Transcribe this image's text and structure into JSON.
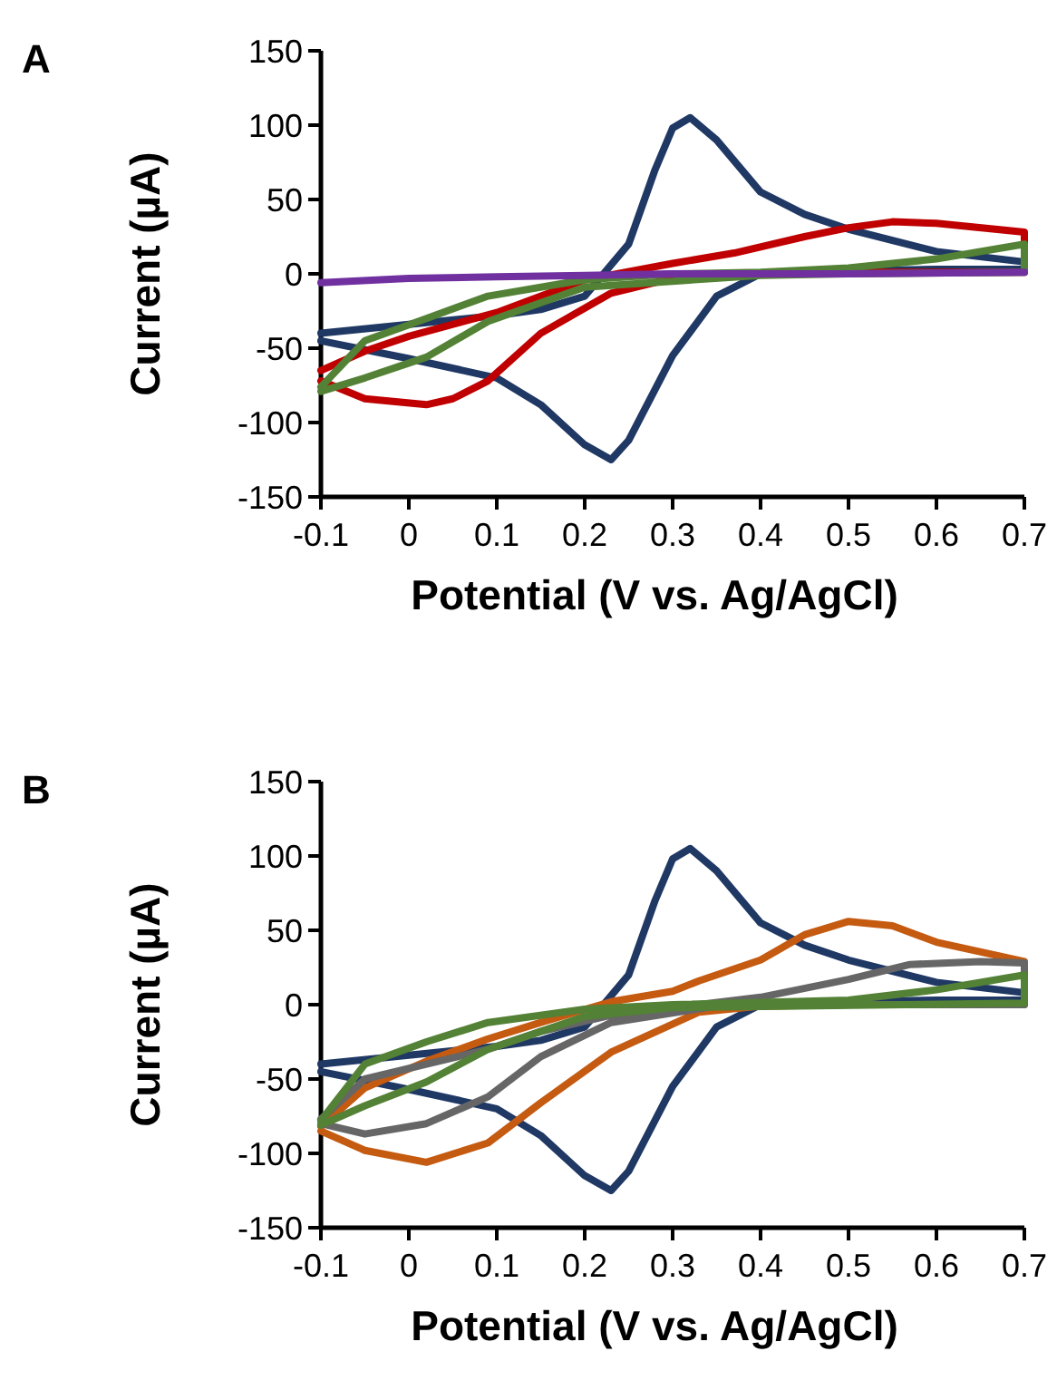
{
  "chart_data": [
    {
      "type": "line",
      "title": "A",
      "xlabel": "Potential (V vs. Ag/AgCl)",
      "ylabel": "Current (µA)",
      "xlim": [
        -0.1,
        0.7
      ],
      "ylim": [
        -150,
        150
      ],
      "xticks": [
        -0.1,
        0,
        0.1,
        0.2,
        0.3,
        0.4,
        0.5,
        0.6,
        0.7
      ],
      "yticks": [
        -150,
        -100,
        -50,
        0,
        50,
        100,
        150
      ],
      "grid": false,
      "marker": "none",
      "line_style": "solid",
      "series": [
        {
          "color": "#1f3864",
          "x": [
            -0.1,
            0,
            0.1,
            0.15,
            0.2,
            0.25,
            0.28,
            0.3,
            0.32,
            0.35,
            0.4,
            0.45,
            0.5,
            0.6,
            0.7,
            0.7,
            0.6,
            0.5,
            0.4,
            0.35,
            0.3,
            0.25,
            0.23,
            0.2,
            0.15,
            0.1,
            0,
            -0.1
          ],
          "values": [
            -40,
            -34,
            -28,
            -24,
            -15,
            20,
            70,
            98,
            105,
            90,
            55,
            40,
            30,
            15,
            8,
            3,
            3,
            2,
            0,
            -15,
            -55,
            -112,
            -125,
            -115,
            -88,
            -70,
            -57,
            -45
          ]
        },
        {
          "color": "#c00000",
          "x": [
            -0.1,
            -0.05,
            0,
            0.1,
            0.2,
            0.3,
            0.37,
            0.45,
            0.5,
            0.55,
            0.6,
            0.7,
            0.7,
            0.5,
            0.4,
            0.3,
            0.23,
            0.15,
            0.09,
            0.05,
            0.02,
            -0.05,
            -0.1
          ],
          "values": [
            -65,
            -52,
            -42,
            -26,
            -4,
            7,
            14,
            25,
            31,
            35,
            34,
            28,
            1,
            1,
            0,
            -3,
            -13,
            -40,
            -72,
            -84,
            -88,
            -84,
            -72
          ]
        },
        {
          "color": "#538135",
          "x": [
            -0.1,
            -0.05,
            0.02,
            0.09,
            0.2,
            0.3,
            0.4,
            0.5,
            0.6,
            0.7,
            0.7,
            0.5,
            0.4,
            0.2,
            0.09,
            0.02,
            -0.05,
            -0.1
          ],
          "values": [
            -76,
            -45,
            -30,
            -15,
            -4,
            0,
            1,
            4,
            10,
            20,
            1,
            0,
            -1,
            -9,
            -32,
            -56,
            -70,
            -79
          ]
        },
        {
          "color": "#7030a0",
          "x": [
            -0.1,
            0,
            0.1,
            0.2,
            0.3,
            0.5,
            0.7
          ],
          "values": [
            -6,
            -3,
            -2,
            -1,
            0,
            0,
            1
          ]
        }
      ]
    },
    {
      "type": "line",
      "title": "B",
      "xlabel": "Potential (V vs. Ag/AgCl)",
      "ylabel": "Current (µA)",
      "xlim": [
        -0.1,
        0.7
      ],
      "ylim": [
        -150,
        150
      ],
      "xticks": [
        -0.1,
        0,
        0.1,
        0.2,
        0.3,
        0.4,
        0.5,
        0.6,
        0.7
      ],
      "yticks": [
        -150,
        -100,
        -50,
        0,
        50,
        100,
        150
      ],
      "grid": false,
      "marker": "none",
      "line_style": "solid",
      "series": [
        {
          "color": "#1f3864",
          "x": [
            -0.1,
            0,
            0.1,
            0.15,
            0.2,
            0.25,
            0.28,
            0.3,
            0.32,
            0.35,
            0.4,
            0.45,
            0.5,
            0.6,
            0.7,
            0.7,
            0.6,
            0.5,
            0.4,
            0.35,
            0.3,
            0.25,
            0.23,
            0.2,
            0.15,
            0.1,
            0,
            -0.1
          ],
          "values": [
            -40,
            -34,
            -28,
            -24,
            -15,
            20,
            70,
            98,
            105,
            90,
            55,
            40,
            30,
            15,
            8,
            3,
            3,
            2,
            0,
            -15,
            -55,
            -112,
            -125,
            -115,
            -88,
            -70,
            -57,
            -45
          ]
        },
        {
          "color": "#c55a11",
          "x": [
            -0.1,
            -0.05,
            0.02,
            0.09,
            0.15,
            0.23,
            0.3,
            0.33,
            0.4,
            0.45,
            0.5,
            0.55,
            0.6,
            0.7,
            0.7,
            0.5,
            0.4,
            0.33,
            0.23,
            0.15,
            0.09,
            0.02,
            -0.05,
            -0.1
          ],
          "values": [
            -82,
            -56,
            -38,
            -23,
            -12,
            2,
            9,
            16,
            30,
            47,
            56,
            53,
            42,
            29,
            0,
            0,
            -1,
            -5,
            -32,
            -66,
            -93,
            -106,
            -98,
            -85
          ]
        },
        {
          "color": "#666666",
          "x": [
            -0.1,
            -0.05,
            0.02,
            0.09,
            0.15,
            0.23,
            0.3,
            0.4,
            0.5,
            0.57,
            0.65,
            0.7,
            0.7,
            0.5,
            0.35,
            0.23,
            0.15,
            0.09,
            0.02,
            -0.05,
            -0.1
          ],
          "values": [
            -77,
            -50,
            -40,
            -30,
            -18,
            -7,
            -2,
            5,
            17,
            27,
            29,
            28,
            0,
            0,
            -1,
            -12,
            -35,
            -62,
            -80,
            -87,
            -80
          ]
        },
        {
          "color": "#538135",
          "x": [
            -0.1,
            -0.05,
            0.02,
            0.09,
            0.2,
            0.3,
            0.5,
            0.6,
            0.7,
            0.7,
            0.3,
            0.2,
            0.09,
            0.02,
            -0.05,
            -0.1
          ],
          "values": [
            -78,
            -40,
            -25,
            -12,
            -3,
            0,
            3,
            10,
            20,
            1,
            -2,
            -8,
            -30,
            -52,
            -68,
            -81
          ]
        }
      ]
    }
  ]
}
